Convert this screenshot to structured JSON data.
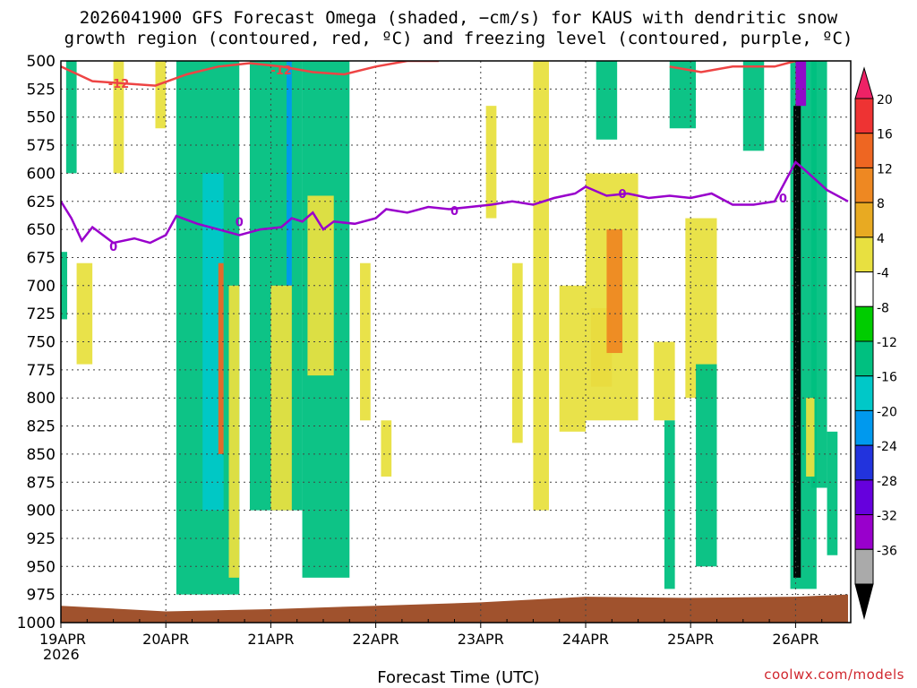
{
  "title_line1": "2026041900 GFS Forecast Omega (shaded, −cm/s) for KAUS with dendritic snow",
  "title_line2": "growth region (contoured, red, ºC) and freezing level (contoured, purple, ºC)",
  "credit": "coolwx.com/models",
  "chart_data": {
    "type": "heatmap",
    "xlabel": "Forecast Time (UTC)",
    "ylabel": "",
    "x_ticks": [
      {
        "label": "19APR",
        "sub": "2026",
        "day": 0
      },
      {
        "label": "20APR",
        "day": 1
      },
      {
        "label": "21APR",
        "day": 2
      },
      {
        "label": "22APR",
        "day": 3
      },
      {
        "label": "23APR",
        "day": 4
      },
      {
        "label": "24APR",
        "day": 5
      },
      {
        "label": "25APR",
        "day": 6
      },
      {
        "label": "26APR",
        "day": 7
      }
    ],
    "x_range_days": [
      0,
      7.5
    ],
    "y_range_hpa": [
      1000,
      500
    ],
    "y_ticks": [
      500,
      525,
      550,
      575,
      600,
      625,
      650,
      675,
      700,
      725,
      750,
      775,
      800,
      825,
      850,
      875,
      900,
      925,
      950,
      975,
      1000
    ],
    "grid": true,
    "colorbar": {
      "labels": [
        20,
        16,
        12,
        8,
        4,
        -4,
        -8,
        -12,
        -16,
        -20,
        -24,
        -28,
        -32,
        -36
      ],
      "colors": [
        "#ee2266",
        "#ee3333",
        "#ee6622",
        "#ee8822",
        "#e8aa22",
        "#e8e040",
        "#ffffff",
        "#00cc00",
        "#00c080",
        "#00c8c8",
        "#0099ee",
        "#2233dd",
        "#6600dd",
        "#9900cc",
        "#aaaaaa",
        "#000000"
      ]
    },
    "freezing_level": {
      "label": "0",
      "color": "#9900cc",
      "points": [
        [
          0,
          625
        ],
        [
          0.1,
          640
        ],
        [
          0.2,
          660
        ],
        [
          0.3,
          648
        ],
        [
          0.5,
          662
        ],
        [
          0.7,
          658
        ],
        [
          0.85,
          662
        ],
        [
          1.0,
          655
        ],
        [
          1.1,
          638
        ],
        [
          1.3,
          645
        ],
        [
          1.5,
          650
        ],
        [
          1.7,
          655
        ],
        [
          1.9,
          650
        ],
        [
          2.1,
          648
        ],
        [
          2.2,
          640
        ],
        [
          2.3,
          643
        ],
        [
          2.4,
          635
        ],
        [
          2.5,
          650
        ],
        [
          2.6,
          643
        ],
        [
          2.8,
          645
        ],
        [
          3.0,
          640
        ],
        [
          3.1,
          632
        ],
        [
          3.3,
          635
        ],
        [
          3.5,
          630
        ],
        [
          3.7,
          632
        ],
        [
          3.9,
          630
        ],
        [
          4.1,
          628
        ],
        [
          4.3,
          625
        ],
        [
          4.5,
          628
        ],
        [
          4.7,
          622
        ],
        [
          4.9,
          618
        ],
        [
          5.0,
          612
        ],
        [
          5.2,
          620
        ],
        [
          5.4,
          618
        ],
        [
          5.6,
          622
        ],
        [
          5.8,
          620
        ],
        [
          6.0,
          622
        ],
        [
          6.2,
          618
        ],
        [
          6.4,
          628
        ],
        [
          6.6,
          628
        ],
        [
          6.8,
          625
        ],
        [
          7.0,
          590
        ],
        [
          7.1,
          598
        ],
        [
          7.3,
          615
        ],
        [
          7.5,
          625
        ]
      ]
    },
    "dgz_minus12": {
      "label": "-12",
      "color": "#ee4444",
      "points": [
        [
          0,
          505
        ],
        [
          0.3,
          518
        ],
        [
          0.6,
          520
        ],
        [
          0.9,
          522
        ],
        [
          1.2,
          512
        ],
        [
          1.5,
          505
        ],
        [
          1.8,
          502
        ],
        [
          2.1,
          505
        ],
        [
          2.4,
          510
        ],
        [
          2.7,
          512
        ],
        [
          3.0,
          505
        ],
        [
          3.3,
          500
        ],
        [
          3.6,
          500
        ]
      ]
    },
    "dgz_minus12_late": {
      "points": [
        [
          5.8,
          505
        ],
        [
          6.1,
          510
        ],
        [
          6.4,
          505
        ],
        [
          6.8,
          505
        ],
        [
          7.0,
          500
        ]
      ]
    },
    "omega_regions": [
      {
        "value": 6,
        "x": [
          0.5,
          0.6
        ],
        "p": [
          500,
          600
        ]
      },
      {
        "value": -10,
        "x": [
          0.05,
          0.15
        ],
        "p": [
          500,
          600
        ]
      },
      {
        "value": 6,
        "x": [
          0.15,
          0.3
        ],
        "p": [
          680,
          770
        ]
      },
      {
        "value": -10,
        "x": [
          0.0,
          0.06
        ],
        "p": [
          670,
          730
        ]
      },
      {
        "value": 6,
        "x": [
          0.9,
          1.0
        ],
        "p": [
          500,
          560
        ]
      },
      {
        "value": -10,
        "x": [
          1.1,
          1.7
        ],
        "p": [
          500,
          975
        ]
      },
      {
        "value": -14,
        "x": [
          1.35,
          1.55
        ],
        "p": [
          600,
          900
        ]
      },
      {
        "value": 6,
        "x": [
          1.6,
          1.7
        ],
        "p": [
          700,
          960
        ]
      },
      {
        "value": 14,
        "x": [
          1.5,
          1.55
        ],
        "p": [
          680,
          850
        ]
      },
      {
        "value": -10,
        "x": [
          1.8,
          2.3
        ],
        "p": [
          500,
          900
        ]
      },
      {
        "value": -18,
        "x": [
          2.15,
          2.2
        ],
        "p": [
          500,
          700
        ]
      },
      {
        "value": 6,
        "x": [
          2.0,
          2.2
        ],
        "p": [
          700,
          900
        ]
      },
      {
        "value": -10,
        "x": [
          2.3,
          2.75
        ],
        "p": [
          500,
          960
        ]
      },
      {
        "value": 6,
        "x": [
          2.35,
          2.6
        ],
        "p": [
          620,
          780
        ]
      },
      {
        "value": 6,
        "x": [
          2.85,
          2.95
        ],
        "p": [
          680,
          820
        ]
      },
      {
        "value": 6,
        "x": [
          3.05,
          3.15
        ],
        "p": [
          820,
          870
        ]
      },
      {
        "value": 6,
        "x": [
          4.05,
          4.15
        ],
        "p": [
          540,
          640
        ]
      },
      {
        "value": 6,
        "x": [
          4.3,
          4.4
        ],
        "p": [
          680,
          840
        ]
      },
      {
        "value": 6,
        "x": [
          4.5,
          4.65
        ],
        "p": [
          500,
          900
        ]
      },
      {
        "value": 6,
        "x": [
          4.75,
          5.0
        ],
        "p": [
          700,
          830
        ]
      },
      {
        "value": 10,
        "x": [
          5.05,
          5.25
        ],
        "p": [
          720,
          790
        ]
      },
      {
        "value": 6,
        "x": [
          5.0,
          5.5
        ],
        "p": [
          600,
          820
        ]
      },
      {
        "value": 10,
        "x": [
          5.2,
          5.35
        ],
        "p": [
          650,
          760
        ]
      },
      {
        "value": -10,
        "x": [
          5.1,
          5.3
        ],
        "p": [
          500,
          570
        ]
      },
      {
        "value": 6,
        "x": [
          5.65,
          5.85
        ],
        "p": [
          750,
          820
        ]
      },
      {
        "value": -10,
        "x": [
          5.8,
          6.05
        ],
        "p": [
          500,
          560
        ]
      },
      {
        "value": 6,
        "x": [
          5.95,
          6.25
        ],
        "p": [
          640,
          800
        ]
      },
      {
        "value": -10,
        "x": [
          5.75,
          5.85
        ],
        "p": [
          820,
          970
        ]
      },
      {
        "value": -10,
        "x": [
          6.05,
          6.25
        ],
        "p": [
          770,
          950
        ]
      },
      {
        "value": -10,
        "x": [
          6.5,
          6.7
        ],
        "p": [
          500,
          580
        ]
      },
      {
        "value": -8,
        "x": [
          6.95,
          7.2
        ],
        "p": [
          500,
          970
        ]
      },
      {
        "value": -36,
        "x": [
          6.98,
          7.05
        ],
        "p": [
          540,
          960
        ]
      },
      {
        "value": -30,
        "x": [
          7.0,
          7.1
        ],
        "p": [
          500,
          540
        ]
      },
      {
        "value": -8,
        "x": [
          7.15,
          7.3
        ],
        "p": [
          500,
          880
        ]
      },
      {
        "value": 6,
        "x": [
          7.1,
          7.18
        ],
        "p": [
          800,
          870
        ]
      },
      {
        "value": -8,
        "x": [
          7.3,
          7.4
        ],
        "p": [
          830,
          940
        ]
      }
    ]
  }
}
